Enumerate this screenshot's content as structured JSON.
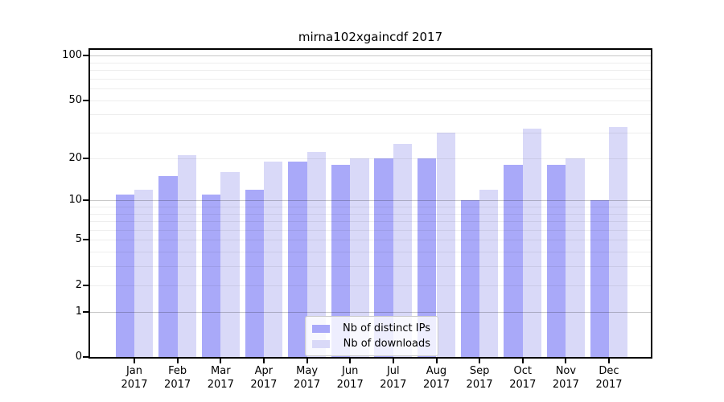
{
  "chart_data": {
    "type": "bar",
    "title": "mirna102xgaincdf 2017",
    "scale": "log1p",
    "grid": true,
    "xlabel": "",
    "ylabel": "",
    "months": [
      "Jan",
      "Feb",
      "Mar",
      "Apr",
      "May",
      "Jun",
      "Jul",
      "Aug",
      "Sep",
      "Oct",
      "Nov",
      "Dec"
    ],
    "year": "2017",
    "series": [
      {
        "name": "Nb of distinct IPs",
        "color": "#a9a9f9",
        "values": [
          11,
          15,
          11,
          12,
          19,
          18,
          20,
          20,
          10,
          18,
          18,
          10
        ]
      },
      {
        "name": "Nb of downloads",
        "color": "#d9d9f8",
        "values": [
          12,
          21,
          16,
          19,
          22,
          20,
          25,
          30,
          12,
          32,
          20,
          33
        ]
      }
    ],
    "ylim": [
      0,
      113
    ],
    "y_ticks": [
      0,
      1,
      2,
      5,
      10,
      20,
      50,
      100
    ],
    "major_gridlines": [
      1,
      10,
      100
    ],
    "minor_gridlines": [
      2,
      3,
      4,
      5,
      6,
      7,
      8,
      9,
      20,
      30,
      40,
      50,
      60,
      70,
      80,
      90
    ],
    "legend_position": "lower center"
  }
}
